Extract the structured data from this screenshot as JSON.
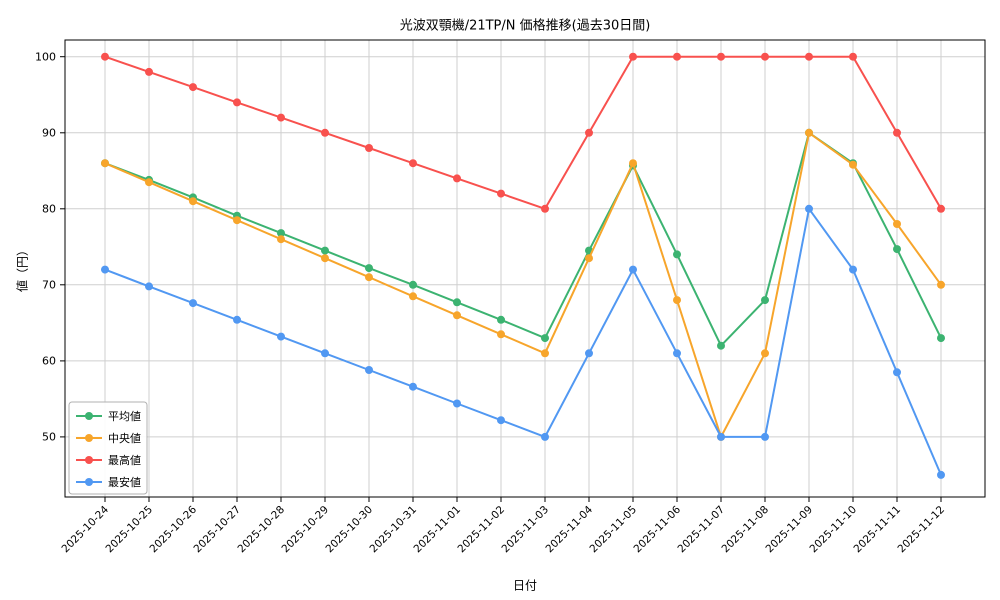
{
  "chart_data": {
    "type": "line",
    "title": "光波双顎機/21TP/N 価格推移(過去30日間)",
    "xlabel": "日付",
    "ylabel": "値（円）",
    "ylim": [
      42.1,
      102.2
    ],
    "yticks": [
      50,
      60,
      70,
      80,
      90,
      100
    ],
    "grid": true,
    "legend_position": "lower left",
    "categories": [
      "2025-10-24",
      "2025-10-25",
      "2025-10-26",
      "2025-10-27",
      "2025-10-28",
      "2025-10-29",
      "2025-10-30",
      "2025-10-31",
      "2025-11-01",
      "2025-11-02",
      "2025-11-03",
      "2025-11-04",
      "2025-11-05",
      "2025-11-06",
      "2025-11-07",
      "2025-11-08",
      "2025-11-09",
      "2025-11-10",
      "2025-11-11",
      "2025-11-12"
    ],
    "series": [
      {
        "key": "average",
        "name": "平均値",
        "color": "#3cb371",
        "values": [
          86,
          83.8,
          81.5,
          79.1,
          76.8,
          74.5,
          72.2,
          70,
          67.7,
          65.4,
          63,
          74.5,
          85.7,
          74,
          62,
          68,
          90,
          86,
          74.7,
          63
        ]
      },
      {
        "key": "median",
        "name": "中央値",
        "color": "#f7a52b",
        "values": [
          86,
          83.5,
          81,
          78.5,
          76,
          73.5,
          71,
          68.5,
          66,
          63.5,
          61,
          73.5,
          86,
          68,
          50,
          61,
          90,
          85.8,
          78,
          70
        ]
      },
      {
        "key": "max",
        "name": "最高値",
        "color": "#f8514e",
        "values": [
          100,
          98,
          96,
          94,
          92,
          90,
          88,
          86,
          84,
          82,
          80,
          90,
          100,
          100,
          100,
          100,
          100,
          100,
          90,
          80
        ]
      },
      {
        "key": "min",
        "name": "最安値",
        "color": "#5198f2",
        "values": [
          72,
          69.8,
          67.6,
          65.4,
          63.2,
          61,
          58.8,
          56.6,
          54.4,
          52.2,
          50,
          61,
          72,
          61,
          50,
          50,
          80,
          72,
          58.5,
          45
        ]
      }
    ]
  }
}
